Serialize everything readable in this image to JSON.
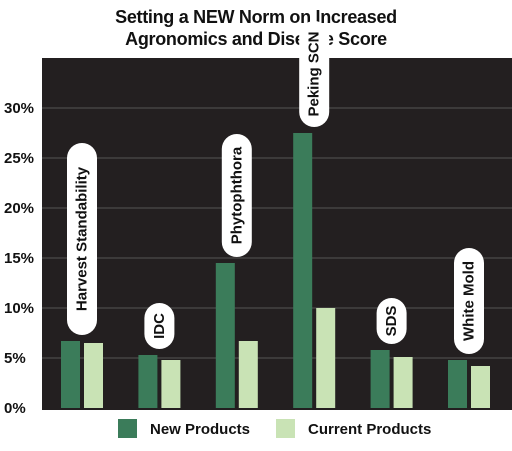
{
  "chart_data": {
    "type": "bar",
    "title_lines": [
      "Setting a NEW Norm on Increased",
      "Agronomics and Disease Score"
    ],
    "categories": [
      "Harvest Standability",
      "IDC",
      "Phytophthora",
      "Peking SCN",
      "SDS",
      "White Mold"
    ],
    "series": [
      {
        "name": "New Products",
        "values": [
          6.7,
          5.3,
          14.5,
          27.5,
          5.8,
          4.8
        ],
        "color": "#3b7c5a"
      },
      {
        "name": "Current Products",
        "values": [
          6.5,
          4.8,
          6.7,
          10.0,
          5.1,
          4.2
        ],
        "color": "#c9e3b5"
      }
    ],
    "y_ticks": [
      "0%",
      "5%",
      "10%",
      "15%",
      "20%",
      "25%",
      "30%"
    ],
    "ylim": [
      0,
      30
    ],
    "grid": true,
    "legend_position": "bottom",
    "plot_background": "#231f20",
    "gridline_color": "#555555"
  }
}
